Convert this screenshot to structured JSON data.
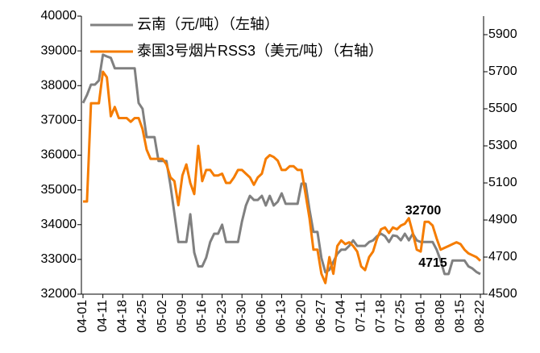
{
  "chart_data": {
    "type": "line",
    "categories": [
      "04-01",
      null,
      null,
      null,
      null,
      "04-11",
      null,
      null,
      null,
      null,
      "04-18",
      null,
      null,
      null,
      null,
      "04-25",
      null,
      null,
      null,
      null,
      "05-02",
      null,
      null,
      null,
      null,
      "05-09",
      null,
      null,
      null,
      null,
      "05-16",
      null,
      null,
      null,
      null,
      "05-23",
      null,
      null,
      null,
      null,
      "05-30",
      null,
      null,
      null,
      null,
      "06-06",
      null,
      null,
      null,
      null,
      "06-13",
      null,
      null,
      null,
      null,
      "06-20",
      null,
      null,
      null,
      null,
      "06-27",
      null,
      null,
      null,
      null,
      "07-04",
      null,
      null,
      null,
      null,
      "07-11",
      null,
      null,
      null,
      null,
      "07-18",
      null,
      null,
      null,
      null,
      "07-25",
      null,
      null,
      null,
      null,
      "08-01",
      null,
      null,
      null,
      null,
      "08-08",
      null,
      null,
      null,
      null,
      "08-15",
      null,
      null,
      null,
      null,
      "08-22"
    ],
    "series": [
      {
        "name": "云南（元/吨）（左轴）",
        "color": "#808080",
        "axis": "y",
        "values": [
          37500,
          37730,
          38030,
          38030,
          38150,
          38890,
          38840,
          38800,
          38500,
          38500,
          38500,
          38500,
          38500,
          38500,
          37500,
          37330,
          36520,
          36520,
          36520,
          35830,
          35830,
          35830,
          35130,
          34320,
          33500,
          33500,
          33500,
          34300,
          33200,
          32800,
          32800,
          33050,
          33500,
          33740,
          33740,
          34000,
          33500,
          33500,
          33500,
          33500,
          34090,
          34550,
          34830,
          34710,
          34710,
          34830,
          34550,
          34830,
          34550,
          34660,
          34900,
          34600,
          34600,
          34600,
          34600,
          35180,
          35180,
          34430,
          33790,
          33790,
          33040,
          32630,
          32700,
          32930,
          33160,
          33280,
          33280,
          33390,
          33550,
          33390,
          33390,
          33390,
          33500,
          33550,
          33670,
          33740,
          33670,
          33500,
          33690,
          33670,
          33550,
          33740,
          33550,
          33740,
          33550,
          33500,
          33500,
          33500,
          33500,
          33280,
          32970,
          32580,
          32580,
          32970,
          32970,
          32970,
          32970,
          32800,
          32740,
          32640,
          32580
        ]
      },
      {
        "name": "泰国3号烟片RSS3（美元/吨）（右轴）",
        "color": "#f57c00",
        "axis": "y2",
        "values": [
          5000,
          5000,
          5530,
          5530,
          5530,
          5700,
          5670,
          5460,
          5510,
          5450,
          5450,
          5450,
          5430,
          5450,
          5450,
          5390,
          5280,
          5230,
          5230,
          5230,
          5230,
          5200,
          5130,
          5110,
          4980,
          5140,
          5200,
          5100,
          5040,
          5300,
          5110,
          5170,
          5170,
          5140,
          5140,
          5150,
          5100,
          5100,
          5130,
          5170,
          5170,
          5150,
          5130,
          5090,
          5130,
          5150,
          5230,
          5250,
          5240,
          5220,
          5170,
          5170,
          5190,
          5190,
          5170,
          5170,
          5040,
          4910,
          4740,
          4740,
          4610,
          4560,
          4700,
          4610,
          4760,
          4790,
          4770,
          4780,
          4760,
          4730,
          4650,
          4630,
          4700,
          4730,
          4800,
          4850,
          4860,
          4830,
          4860,
          4850,
          4870,
          4880,
          4910,
          4830,
          4740,
          4730,
          4890,
          4890,
          4870,
          4800,
          4740,
          4750,
          4760,
          4770,
          4780,
          4770,
          4740,
          4720,
          4710,
          4700,
          4680
        ]
      }
    ],
    "ylim": [
      32000,
      40000
    ],
    "yticks": [
      32000,
      33000,
      34000,
      35000,
      36000,
      37000,
      38000,
      39000,
      40000
    ],
    "y2lim": [
      4500,
      6000
    ],
    "y2ticks": [
      4500,
      4700,
      4900,
      5100,
      5300,
      5500,
      5700,
      5900
    ],
    "annotations": [
      "32700",
      "4715"
    ],
    "legend": "upper left"
  }
}
